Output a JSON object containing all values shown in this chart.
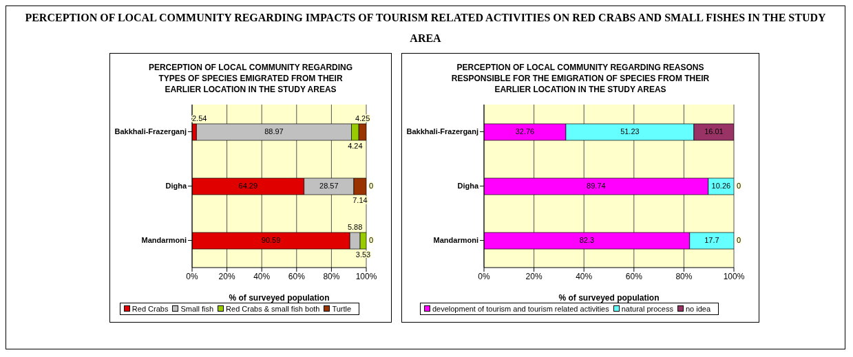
{
  "chart_data": [
    {
      "type": "other",
      "title": "PERCEPTION OF  LOCAL COMMUNITY REGARDING IMPACTS OF TOURISM RELATED ACTIVITIES ON RED CRABS AND SMALL FISHES IN THE STUDY AREA"
    },
    {
      "type": "bar",
      "orientation": "horizontal",
      "stacked": true,
      "title": "PERCEPTION OF LOCAL COMMUNITY REGARDING TYPES OF SPECIES EMIGRATED FROM THEIR EARLIER LOCATION IN THE STUDY AREAS",
      "xlabel": "% of surveyed population",
      "categories": [
        "Bakkhali-Frazerganj",
        "Digha",
        "Mandarmoni"
      ],
      "series": [
        {
          "name": "Red Crabs",
          "color": "#e00000",
          "values": [
            2.54,
            64.29,
            90.59
          ]
        },
        {
          "name": "Small fish",
          "color": "#c0c0c0",
          "values": [
            88.97,
            28.57,
            5.88
          ]
        },
        {
          "name": "Red Crabs & small fish both",
          "color": "#99cc00",
          "values": [
            4.24,
            0,
            3.53
          ]
        },
        {
          "name": "Turtle",
          "color": "#993300",
          "values": [
            4.25,
            7.14,
            0
          ]
        }
      ],
      "xlim": [
        0,
        100
      ],
      "xticks": [
        {
          "value": 0,
          "label": "0%"
        },
        {
          "value": 20,
          "label": "20%"
        },
        {
          "value": 40,
          "label": "40%"
        },
        {
          "value": 60,
          "label": "60%"
        },
        {
          "value": 80,
          "label": "80%"
        },
        {
          "value": 100,
          "label": "100%"
        }
      ],
      "grid": "x",
      "legend": "bottom",
      "data_labels": true
    },
    {
      "type": "bar",
      "orientation": "horizontal",
      "stacked": true,
      "title": "PERCEPTION OF LOCAL COMMUNITY REGARDING REASONS RESPONSIBLE FOR THE EMIGRATION OF SPECIES FROM THEIR EARLIER LOCATION IN THE STUDY AREAS",
      "xlabel": "% of surveyed population",
      "categories": [
        "Bakkhali-Frazerganj",
        "Digha",
        "Mandarmoni"
      ],
      "series": [
        {
          "name": "development of tourism and tourism related activities",
          "color": "#ff00ff",
          "values": [
            32.76,
            89.74,
            82.3
          ]
        },
        {
          "name": "natural process",
          "color": "#66ffff",
          "values": [
            51.23,
            10.26,
            17.7
          ]
        },
        {
          "name": "no idea",
          "color": "#993366",
          "values": [
            16.01,
            0,
            0
          ]
        }
      ],
      "xlim": [
        0,
        100
      ],
      "xticks": [
        {
          "value": 0,
          "label": "0%"
        },
        {
          "value": 20,
          "label": "20%"
        },
        {
          "value": 40,
          "label": "40%"
        },
        {
          "value": 60,
          "label": "60%"
        },
        {
          "value": 80,
          "label": "80%"
        },
        {
          "value": 100,
          "label": "100%"
        }
      ],
      "grid": "x",
      "legend": "bottom",
      "data_labels": true
    }
  ]
}
